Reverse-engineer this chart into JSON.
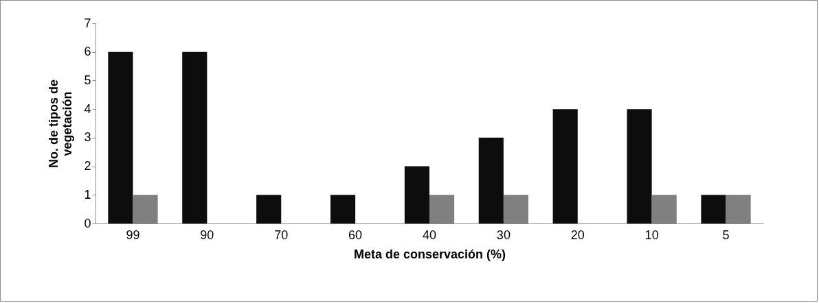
{
  "chart_data": {
    "type": "bar",
    "xlabel": "Meta de conservación (%)",
    "ylabel": "No. de tipos de vegetación",
    "categories": [
      "99",
      "90",
      "70",
      "60",
      "40",
      "30",
      "20",
      "10",
      "5"
    ],
    "series": [
      {
        "color": "#0d0d0d",
        "values": [
          6,
          6,
          1,
          1,
          2,
          3,
          4,
          4,
          1
        ]
      },
      {
        "color": "#808080",
        "values": [
          1,
          0,
          0,
          0,
          1,
          1,
          0,
          1,
          1
        ]
      }
    ],
    "ylim": [
      0,
      7
    ],
    "yticks": [
      0,
      1,
      2,
      3,
      4,
      5,
      6,
      7
    ],
    "grid": false,
    "legend": false
  }
}
